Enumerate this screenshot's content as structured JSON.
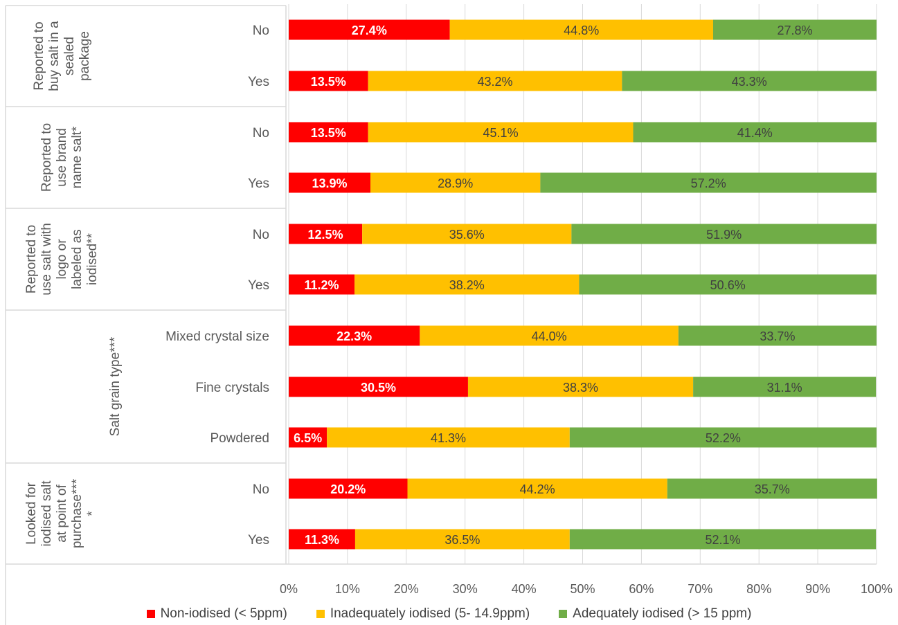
{
  "chart_data": {
    "type": "bar",
    "orientation": "horizontal",
    "stacked": true,
    "title": "",
    "xlabel": "",
    "ylabel": "",
    "xlim": [
      0,
      100
    ],
    "x_ticks": [
      "0%",
      "10%",
      "20%",
      "30%",
      "40%",
      "50%",
      "60%",
      "70%",
      "80%",
      "90%",
      "100%"
    ],
    "grid": "vertical",
    "legend_position": "bottom",
    "groups": [
      {
        "label": "Reported to buy salt in a sealed package",
        "label_lines": [
          "Reported to",
          "buy salt in a",
          "sealed",
          "package"
        ],
        "categories": [
          "No",
          "Yes"
        ]
      },
      {
        "label": "Reported to use brand name salt*",
        "label_lines": [
          "Reported to",
          "use brand",
          "name salt*"
        ],
        "categories": [
          "No",
          "Yes"
        ]
      },
      {
        "label": "Reported to use salt with logo or labeled as iodised**",
        "label_lines": [
          "Reported to",
          "use salt with",
          "logo or",
          "labeled as",
          "iodised**"
        ],
        "categories": [
          "No",
          "Yes"
        ]
      },
      {
        "label": "Salt grain type***",
        "label_lines": [
          "Salt grain type***"
        ],
        "categories": [
          "Mixed crystal size",
          "Fine crystals",
          "Powdered"
        ]
      },
      {
        "label": "Looked for iodised salt at point of purchase****",
        "label_lines": [
          "Looked for",
          "iodised salt",
          "at point of",
          "purchase***",
          "*"
        ],
        "categories": [
          "No",
          "Yes"
        ]
      }
    ],
    "series": [
      {
        "name": "Non-iodised (< 5ppm)",
        "color": "#ff0000",
        "label_color": "#ffffff",
        "values": [
          27.4,
          13.5,
          13.5,
          13.9,
          12.5,
          11.2,
          22.3,
          30.5,
          6.5,
          20.2,
          11.3
        ],
        "labels": [
          "27.4%",
          "13.5%",
          "13.5%",
          "13.9%",
          "12.5%",
          "11.2%",
          "22.3%",
          "30.5%",
          "6.5%",
          "20.2%",
          "11.3%"
        ]
      },
      {
        "name": "Inadequately iodised (5- 14.9ppm)",
        "color": "#ffc000",
        "label_color": "#404040",
        "values": [
          44.8,
          43.2,
          45.1,
          28.9,
          35.6,
          38.2,
          44.0,
          38.3,
          41.3,
          44.2,
          36.5
        ],
        "labels": [
          "44.8%",
          "43.2%",
          "45.1%",
          "28.9%",
          "35.6%",
          "38.2%",
          "44.0%",
          "38.3%",
          "41.3%",
          "44.2%",
          "36.5%"
        ]
      },
      {
        "name": "Adequately iodised (> 15 ppm)",
        "color": "#70ad47",
        "label_color": "#404040",
        "values": [
          27.8,
          43.3,
          41.4,
          57.2,
          51.9,
          50.6,
          33.7,
          31.1,
          52.2,
          35.7,
          52.1
        ],
        "labels": [
          "27.8%",
          "43.3%",
          "41.4%",
          "57.2%",
          "51.9%",
          "50.6%",
          "33.7%",
          "31.1%",
          "52.2%",
          "35.7%",
          "52.1%"
        ]
      }
    ]
  }
}
